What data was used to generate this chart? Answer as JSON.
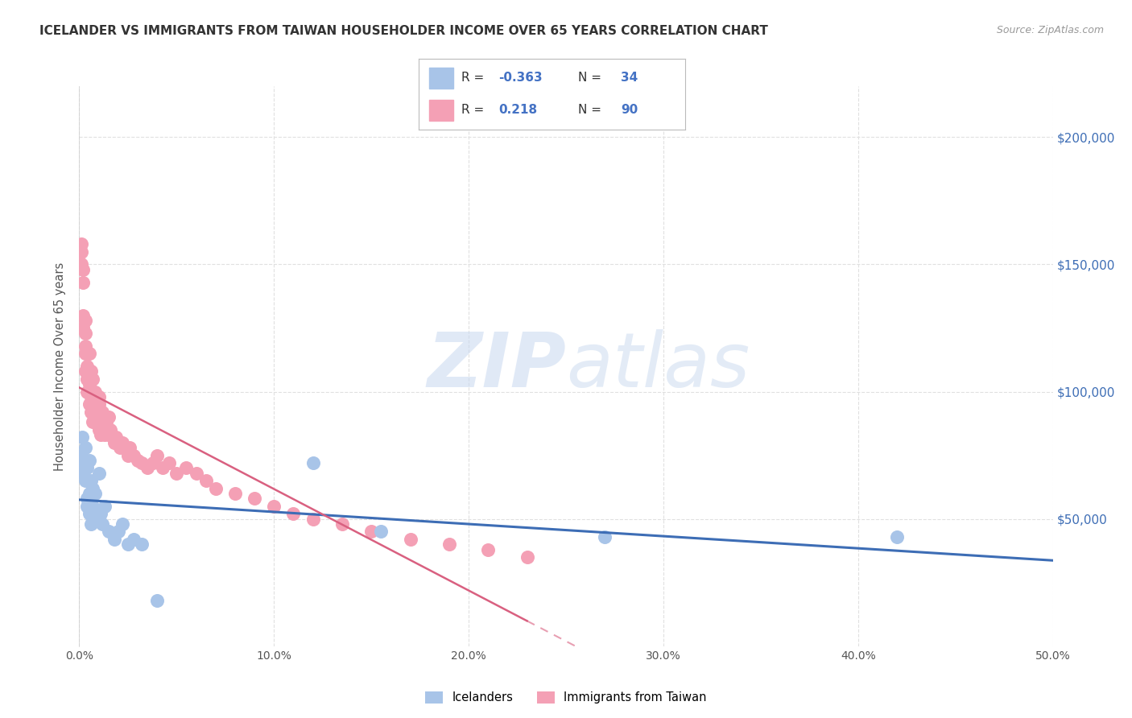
{
  "title": "ICELANDER VS IMMIGRANTS FROM TAIWAN HOUSEHOLDER INCOME OVER 65 YEARS CORRELATION CHART",
  "source": "Source: ZipAtlas.com",
  "ylabel": "Householder Income Over 65 years",
  "xlim": [
    0.0,
    0.5
  ],
  "ylim": [
    0,
    220000
  ],
  "yticks": [
    50000,
    100000,
    150000,
    200000
  ],
  "ytick_labels": [
    "$50,000",
    "$100,000",
    "$150,000",
    "$200,000"
  ],
  "xtick_vals": [
    0.0,
    0.1,
    0.2,
    0.3,
    0.4,
    0.5
  ],
  "xtick_labels": [
    "0.0%",
    "10.0%",
    "20.0%",
    "30.0%",
    "40.0%",
    "50.0%"
  ],
  "watermark_zip": "ZIP",
  "watermark_atlas": "atlas",
  "icelander_color": "#a8c4e8",
  "taiwan_color": "#f4a0b5",
  "icelander_line_color": "#3d6db5",
  "taiwan_line_color": "#d96080",
  "background_color": "#ffffff",
  "grid_color": "#e0e0e0",
  "title_color": "#333333",
  "source_color": "#999999",
  "legend_r1_val": "-0.363",
  "legend_n1_val": "34",
  "legend_r2_val": "0.218",
  "legend_n2_val": "90",
  "legend_label1": "Icelanders",
  "legend_label2": "Immigrants from Taiwan",
  "icelander_x": [
    0.001,
    0.0015,
    0.002,
    0.002,
    0.003,
    0.003,
    0.004,
    0.004,
    0.004,
    0.005,
    0.005,
    0.005,
    0.006,
    0.006,
    0.007,
    0.007,
    0.008,
    0.009,
    0.01,
    0.011,
    0.012,
    0.013,
    0.015,
    0.018,
    0.02,
    0.022,
    0.025,
    0.028,
    0.032,
    0.04,
    0.12,
    0.155,
    0.27,
    0.42
  ],
  "icelander_y": [
    75000,
    82000,
    68000,
    72000,
    78000,
    65000,
    70000,
    58000,
    55000,
    73000,
    60000,
    52000,
    65000,
    48000,
    62000,
    55000,
    60000,
    50000,
    68000,
    52000,
    48000,
    55000,
    45000,
    42000,
    45000,
    48000,
    40000,
    42000,
    40000,
    18000,
    72000,
    45000,
    43000,
    43000
  ],
  "taiwan_x": [
    0.001,
    0.001,
    0.001,
    0.002,
    0.002,
    0.002,
    0.002,
    0.003,
    0.003,
    0.003,
    0.003,
    0.003,
    0.004,
    0.004,
    0.004,
    0.004,
    0.005,
    0.005,
    0.005,
    0.005,
    0.005,
    0.005,
    0.006,
    0.006,
    0.006,
    0.006,
    0.006,
    0.007,
    0.007,
    0.007,
    0.007,
    0.007,
    0.008,
    0.008,
    0.008,
    0.008,
    0.008,
    0.009,
    0.009,
    0.009,
    0.009,
    0.01,
    0.01,
    0.01,
    0.01,
    0.01,
    0.011,
    0.011,
    0.011,
    0.012,
    0.012,
    0.013,
    0.013,
    0.014,
    0.015,
    0.015,
    0.016,
    0.017,
    0.018,
    0.019,
    0.02,
    0.021,
    0.022,
    0.023,
    0.025,
    0.026,
    0.028,
    0.03,
    0.032,
    0.035,
    0.038,
    0.04,
    0.043,
    0.046,
    0.05,
    0.055,
    0.06,
    0.065,
    0.07,
    0.08,
    0.09,
    0.1,
    0.11,
    0.12,
    0.135,
    0.15,
    0.17,
    0.19,
    0.21,
    0.23
  ],
  "taiwan_y": [
    155000,
    158000,
    150000,
    148000,
    143000,
    130000,
    125000,
    128000,
    123000,
    118000,
    115000,
    108000,
    115000,
    110000,
    105000,
    100000,
    115000,
    108000,
    105000,
    103000,
    100000,
    95000,
    108000,
    100000,
    98000,
    95000,
    92000,
    105000,
    100000,
    98000,
    95000,
    88000,
    100000,
    98000,
    95000,
    92000,
    88000,
    95000,
    92000,
    90000,
    88000,
    98000,
    95000,
    92000,
    90000,
    85000,
    90000,
    88000,
    83000,
    92000,
    88000,
    88000,
    83000,
    88000,
    90000,
    83000,
    85000,
    82000,
    80000,
    82000,
    80000,
    78000,
    80000,
    78000,
    75000,
    78000,
    75000,
    73000,
    72000,
    70000,
    72000,
    75000,
    70000,
    72000,
    68000,
    70000,
    68000,
    65000,
    62000,
    60000,
    58000,
    55000,
    52000,
    50000,
    48000,
    45000,
    42000,
    40000,
    38000,
    35000
  ]
}
